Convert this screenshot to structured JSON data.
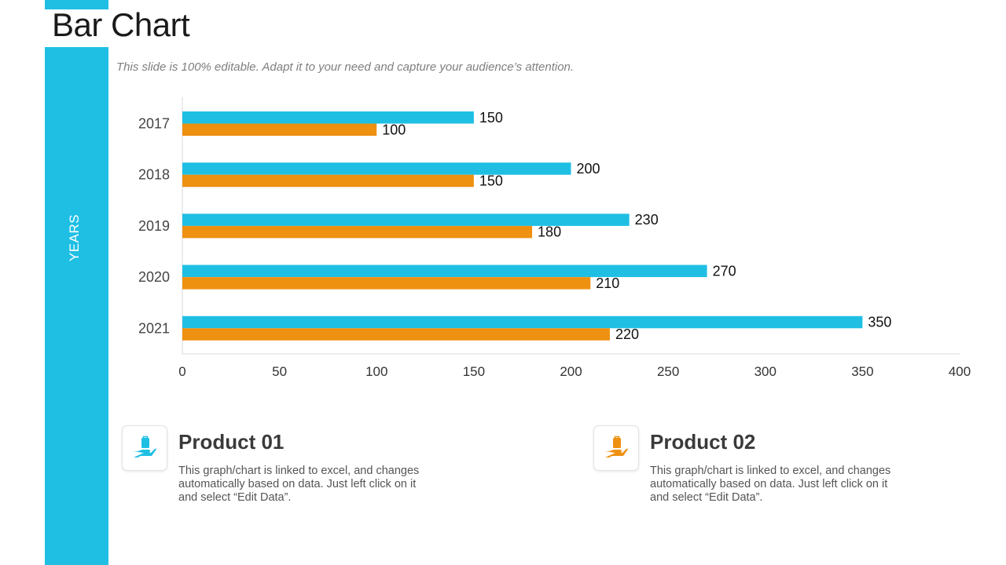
{
  "page": {
    "title": "Bar Chart",
    "subtitle": "This slide is 100% editable. Adapt it to your need and capture your audience’s attention."
  },
  "sidebar": {
    "axis_label": "YEARS"
  },
  "colors": {
    "series1": "#1fbfe4",
    "series2": "#ee9010",
    "sidebar": "#1fbfe4"
  },
  "chart_data": {
    "type": "bar",
    "orientation": "horizontal",
    "categories": [
      "2017",
      "2018",
      "2019",
      "2020",
      "2021"
    ],
    "series": [
      {
        "name": "Product 01",
        "values": [
          150,
          200,
          230,
          270,
          350
        ],
        "color": "#1fbfe4"
      },
      {
        "name": "Product 02",
        "values": [
          100,
          150,
          180,
          210,
          220
        ],
        "color": "#ee9010"
      }
    ],
    "xlim": [
      0,
      400
    ],
    "xticks": [
      0,
      50,
      100,
      150,
      200,
      250,
      300,
      350,
      400
    ],
    "ylabel": "YEARS",
    "data_labels": true
  },
  "legend_cards": [
    {
      "title": "Product 01",
      "description": "This graph/chart is linked to excel, and changes automatically based on data. Just left click on it and select “Edit Data”.",
      "icon": "hand-holding-bag-icon",
      "color": "#1fbfe4"
    },
    {
      "title": "Product 02",
      "description": "This graph/chart is linked to excel, and changes automatically based on data. Just left click on it and select “Edit Data”.",
      "icon": "hand-holding-bag-icon",
      "color": "#ee9010"
    }
  ]
}
